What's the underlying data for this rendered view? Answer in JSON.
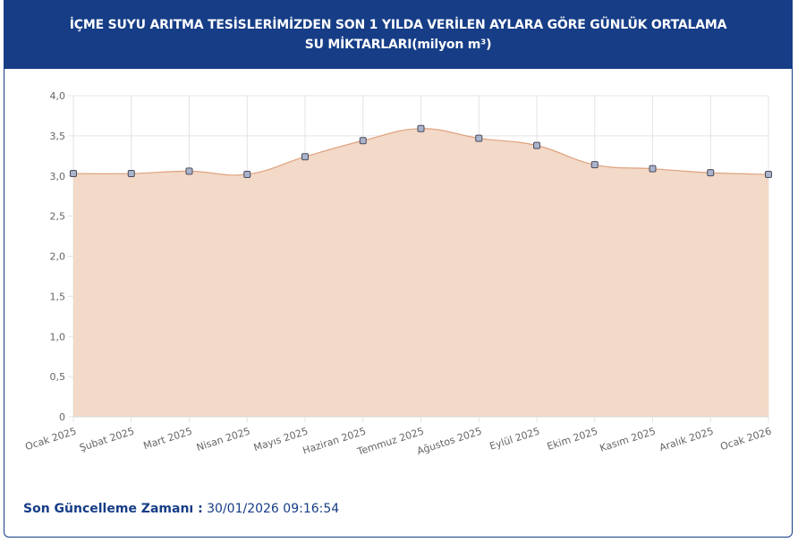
{
  "header": {
    "title": "İÇME SUYU ARITMA TESİSLERİMİZDEN SON 1 YILDA VERİLEN AYLARA GÖRE GÜNLÜK ORTALAMA SU MİKTARLARI(milyon m³)"
  },
  "footer": {
    "label": "Son Güncelleme Zamanı :",
    "value": "30/01/2026 09:16:54"
  },
  "colors": {
    "header_bg": "#163d86",
    "area_fill": "#f2d9c8",
    "line": "#e0a27e",
    "point_fill": "#aab4cc",
    "point_stroke": "#4a4a5a",
    "grid": "#e4e4e4"
  },
  "chart_data": {
    "type": "area",
    "categories": [
      "Ocak 2025",
      "Şubat 2025",
      "Mart 2025",
      "Nisan 2025",
      "Mayıs 2025",
      "Haziran 2025",
      "Temmuz 2025",
      "Ağustos 2025",
      "Eylül 2025",
      "Ekim 2025",
      "Kasım 2025",
      "Aralık 2025",
      "Ocak 2026"
    ],
    "values": [
      3.03,
      3.03,
      3.06,
      3.02,
      3.24,
      3.44,
      3.59,
      3.47,
      3.38,
      3.14,
      3.09,
      3.04,
      3.02
    ],
    "y_ticks": [
      "0",
      "0,5",
      "1,0",
      "1,5",
      "2,0",
      "2,5",
      "3,0",
      "3,5",
      "4,0"
    ],
    "ylim": [
      0,
      4
    ],
    "grid": true,
    "legend": "none"
  }
}
